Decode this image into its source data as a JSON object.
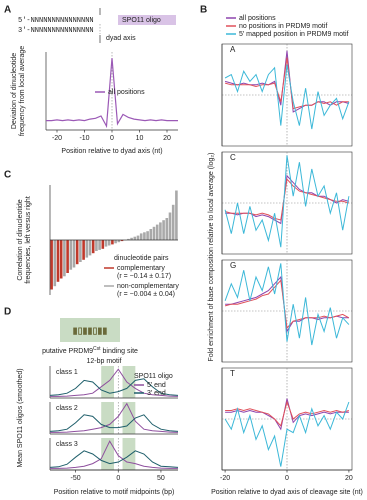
{
  "chart_data": [
    {
      "type": "line",
      "panel_label": "A",
      "strand_top": "5′-NNNNNNNNNNNNNNN",
      "strand_bottom": "3′-NNNNNNNNNNNNNNN",
      "dyad_label": "dyad axis",
      "oligo_label": "SPO11 oligo",
      "y_label": [
        "Deviation of dinucleotide",
        "frequency from local average"
      ],
      "x_label": "Position relative to dyad axis (nt)",
      "xlim": [
        -24,
        24
      ],
      "ylim": [
        0,
        1
      ],
      "xticks": [
        -20,
        -10,
        0,
        10,
        20
      ],
      "x": [
        -24,
        -22,
        -20,
        -18,
        -16,
        -14,
        -12,
        -10,
        -8,
        -6,
        -4,
        -2,
        0,
        2,
        4,
        6,
        8,
        10,
        12,
        14,
        16,
        18,
        20,
        22,
        24
      ],
      "series": [
        {
          "name": "all positions",
          "color": "#9b59b6",
          "values": [
            0.12,
            0.12,
            0.13,
            0.12,
            0.13,
            0.12,
            0.13,
            0.12,
            0.14,
            0.15,
            0.18,
            0.05,
            0.92,
            0.08,
            0.2,
            0.16,
            0.14,
            0.13,
            0.12,
            0.13,
            0.12,
            0.13,
            0.12,
            0.12,
            0.12
          ]
        }
      ]
    },
    {
      "type": "line-panels",
      "panel_label": "B",
      "y_label": "Fold enrichment of base composition relative to local average (log₂)",
      "x_label": "Position relative to dyad axis of cleavage site (nt)",
      "xlim": [
        -21,
        21
      ],
      "ylim": [
        -1.5,
        1.5
      ],
      "xticks": [
        -20,
        0,
        20
      ],
      "zero_line": true,
      "x": [
        -20,
        -18,
        -16,
        -14,
        -12,
        -10,
        -8,
        -6,
        -4,
        -2,
        0,
        2,
        4,
        6,
        8,
        10,
        12,
        14,
        16,
        18,
        20
      ],
      "series": [
        {
          "name": "all positions",
          "color": "#8e44ad"
        },
        {
          "name": "no positions in PRDM9 motif",
          "color": "#e0505a"
        },
        {
          "name": "5′ mapped position in PRDM9 motif",
          "color": "#3cb8d8"
        }
      ],
      "subplots": [
        {
          "title": "A",
          "values": [
            [
              0.4,
              0.35,
              0.3,
              0.35,
              0.3,
              0.3,
              0.35,
              0.3,
              0.4,
              -0.3,
              1.3,
              -0.5,
              -0.4,
              -0.3,
              -0.3,
              -0.2,
              -0.2,
              -0.3,
              -0.2,
              -0.2,
              -0.25
            ],
            [
              0.35,
              0.3,
              0.3,
              0.3,
              0.3,
              0.25,
              0.3,
              0.3,
              0.35,
              -0.2,
              1.1,
              -0.4,
              -0.35,
              -0.3,
              -0.3,
              -0.2,
              -0.25,
              -0.2,
              -0.3,
              -0.2,
              -0.2
            ],
            [
              0.5,
              0.6,
              0.1,
              0.7,
              0.4,
              0.6,
              0.1,
              0.6,
              0.8,
              -0.9,
              0.9,
              -0.2,
              -0.9,
              0.2,
              -1.0,
              0.1,
              -0.6,
              -0.3,
              -0.1,
              -0.7,
              -0.2
            ]
          ]
        },
        {
          "title": "C",
          "values": [
            [
              -0.3,
              -0.3,
              -0.35,
              -0.3,
              -0.3,
              -0.4,
              -0.35,
              -0.4,
              -0.5,
              -0.6,
              0.8,
              0.6,
              0.4,
              0.3,
              0.3,
              0.2,
              0.2,
              0.1,
              0.0,
              0.1,
              0.05
            ],
            [
              -0.25,
              -0.3,
              -0.3,
              -0.3,
              -0.3,
              -0.35,
              -0.3,
              -0.35,
              -0.45,
              -0.5,
              0.7,
              0.5,
              0.35,
              0.3,
              0.25,
              0.2,
              0.15,
              0.1,
              0.05,
              0.05,
              0.0
            ],
            [
              -0.2,
              -0.9,
              0.0,
              -0.9,
              -0.1,
              -0.8,
              -0.5,
              -1.1,
              -0.3,
              -1.3,
              1.4,
              0.2,
              1.2,
              -0.1,
              1.0,
              0.2,
              0.5,
              -0.3,
              0.3,
              -0.8,
              0.2
            ]
          ]
        },
        {
          "title": "G",
          "values": [
            [
              0.2,
              0.2,
              0.25,
              0.3,
              0.35,
              0.4,
              0.5,
              0.6,
              0.8,
              1.0,
              -0.6,
              -0.3,
              -0.3,
              -0.2,
              -0.2,
              -0.25,
              -0.2,
              -0.2,
              -0.15,
              -0.2,
              -0.2
            ],
            [
              0.15,
              0.2,
              0.2,
              0.25,
              0.3,
              0.35,
              0.45,
              0.5,
              0.7,
              0.9,
              -0.5,
              -0.3,
              -0.25,
              -0.2,
              -0.2,
              -0.2,
              -0.15,
              -0.2,
              -0.15,
              -0.1,
              -0.2
            ],
            [
              0.3,
              0.8,
              0.4,
              1.2,
              0.3,
              1.0,
              0.6,
              1.3,
              0.5,
              1.4,
              -0.9,
              0.2,
              -0.8,
              0.4,
              -1.0,
              -0.1,
              -0.6,
              0.1,
              -0.8,
              -0.2,
              -0.4
            ]
          ]
        },
        {
          "title": "T",
          "values": [
            [
              0.2,
              0.2,
              0.25,
              0.2,
              0.25,
              0.2,
              0.2,
              0.1,
              0.0,
              -0.3,
              0.6,
              -0.1,
              0.1,
              0.15,
              0.1,
              0.15,
              0.2,
              0.15,
              0.2,
              0.2,
              0.2
            ],
            [
              0.25,
              0.25,
              0.3,
              0.25,
              0.3,
              0.25,
              0.2,
              0.15,
              0.0,
              -0.2,
              0.5,
              0.0,
              0.15,
              0.2,
              0.15,
              0.2,
              0.25,
              0.2,
              0.25,
              0.2,
              0.25
            ],
            [
              0.0,
              -0.3,
              0.3,
              -0.4,
              0.1,
              -0.6,
              -0.2,
              -0.9,
              -0.5,
              -1.4,
              -0.3,
              -0.4,
              0.1,
              -0.4,
              0.3,
              -0.2,
              0.1,
              -0.3,
              0.2,
              0.0,
              0.5
            ]
          ]
        }
      ]
    },
    {
      "type": "bar",
      "panel_label": "C",
      "y_label": [
        "Correlation of dinucleotide",
        "frequencies, left versus right"
      ],
      "legend_title": "dinucleotide pairs",
      "ylim": [
        -0.5,
        0.5
      ],
      "series": [
        {
          "name": "complementary",
          "stat": "(r = −0.14 ± 0.17)",
          "color": "#c0392b",
          "values": [
            -0.45,
            null,
            -0.38,
            -0.35,
            null,
            -0.3,
            null,
            null,
            -0.22,
            null,
            -0.18,
            null,
            null,
            -0.12,
            null,
            null,
            -0.08,
            null,
            null,
            -0.04,
            null,
            null,
            -0.01,
            null,
            null,
            null,
            null,
            null,
            null,
            null,
            null,
            null,
            null,
            null,
            null,
            null,
            null,
            null,
            null,
            null
          ]
        },
        {
          "name": "non-complementary",
          "stat": "(r = −0.004 ± 0.04)",
          "color": "#a9a9a9",
          "values": [
            null,
            -0.42,
            null,
            null,
            -0.33,
            null,
            -0.27,
            -0.25,
            null,
            -0.2,
            null,
            -0.16,
            -0.14,
            null,
            -0.1,
            -0.09,
            null,
            -0.06,
            -0.05,
            null,
            -0.03,
            -0.02,
            null,
            0,
            0.01,
            0.02,
            0.03,
            0.04,
            0.06,
            0.07,
            0.08,
            0.1,
            0.12,
            0.14,
            0.16,
            0.18,
            0.2,
            0.25,
            0.32,
            0.45
          ]
        }
      ]
    },
    {
      "type": "line-panels",
      "panel_label": "D",
      "motif_label": {
        "before": "putative PRDM9",
        "superscript": "Cst",
        "after": " binding site"
      },
      "motif_length": "12-bp motif",
      "y_label": "Mean SPO11 oligos (smoothed)",
      "x_label": "Position relative to motif midpoints (bp)",
      "legend_title": "SPO11 oligo",
      "xlim": [
        -80,
        70
      ],
      "ylim": [
        0,
        1
      ],
      "xticks": [
        -50,
        0,
        50
      ],
      "highlight_ranges": [
        [
          -20,
          -5
        ],
        [
          5,
          20
        ]
      ],
      "highlight_color": "#c9dcc4",
      "x": [
        -80,
        -70,
        -60,
        -50,
        -40,
        -30,
        -20,
        -10,
        0,
        10,
        20,
        30,
        40,
        50,
        60,
        70
      ],
      "series": [
        {
          "name": "5′ end",
          "color": "#8e4f9e"
        },
        {
          "name": "3′ end",
          "color": "#1f5f6b"
        }
      ],
      "subplots": [
        {
          "title": "class 1",
          "values": [
            [
              0.05,
              0.05,
              0.06,
              0.08,
              0.1,
              0.15,
              0.35,
              0.55,
              0.9,
              0.5,
              0.3,
              0.15,
              0.1,
              0.08,
              0.06,
              0.05
            ],
            [
              0.08,
              0.1,
              0.15,
              0.3,
              0.55,
              0.5,
              0.25,
              0.15,
              0.2,
              0.3,
              0.55,
              0.6,
              0.35,
              0.15,
              0.1,
              0.08
            ]
          ]
        },
        {
          "title": "class 2",
          "values": [
            [
              0.05,
              0.05,
              0.06,
              0.08,
              0.1,
              0.15,
              0.2,
              0.3,
              0.55,
              0.95,
              0.4,
              0.15,
              0.1,
              0.08,
              0.06,
              0.05
            ],
            [
              0.08,
              0.1,
              0.15,
              0.35,
              0.6,
              0.55,
              0.3,
              0.2,
              0.2,
              0.25,
              0.5,
              0.6,
              0.3,
              0.15,
              0.1,
              0.08
            ]
          ]
        },
        {
          "title": "class 3",
          "values": [
            [
              0.05,
              0.05,
              0.06,
              0.08,
              0.12,
              0.2,
              0.35,
              0.9,
              0.45,
              0.25,
              0.2,
              0.12,
              0.08,
              0.06,
              0.05,
              0.05
            ],
            [
              0.08,
              0.1,
              0.18,
              0.4,
              0.6,
              0.5,
              0.3,
              0.2,
              0.25,
              0.4,
              0.6,
              0.5,
              0.25,
              0.12,
              0.1,
              0.08
            ]
          ]
        }
      ]
    }
  ]
}
